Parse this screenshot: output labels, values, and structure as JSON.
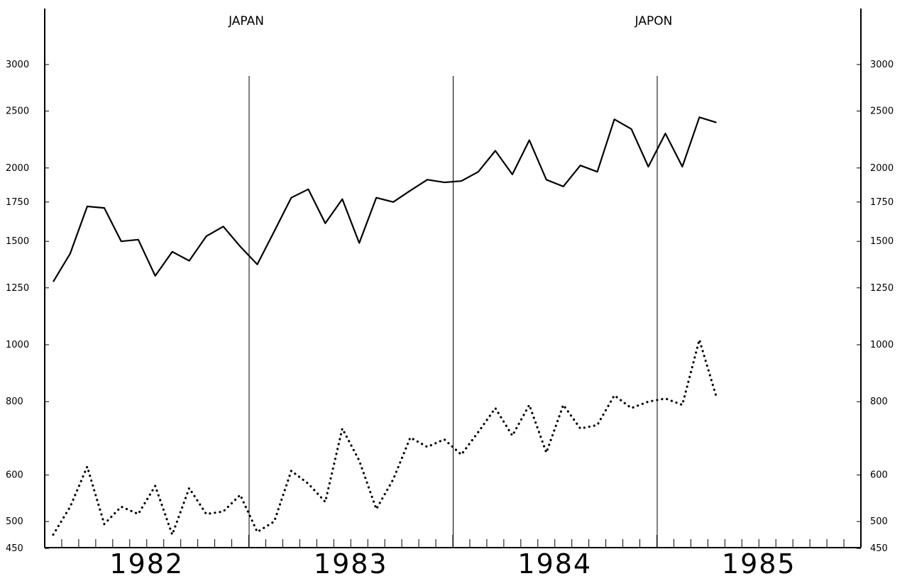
{
  "chart_data": {
    "type": "line",
    "titles": [
      "JAPAN",
      "JAPON"
    ],
    "x_unit": "month",
    "x_start": "1982-01",
    "x_end": "1985-12",
    "years": [
      "1982",
      "1983",
      "1984",
      "1985"
    ],
    "y_scale": "log",
    "ylim": [
      450,
      3500
    ],
    "y_ticks": [
      450,
      500,
      600,
      800,
      1000,
      1250,
      1500,
      1750,
      2000,
      2500,
      3000
    ],
    "year_dividers": [
      "1983-01",
      "1984-01",
      "1985-01"
    ],
    "series": [
      {
        "style": "solid",
        "start": "1982-01",
        "values": [
          1280,
          1430,
          1720,
          1710,
          1500,
          1510,
          1310,
          1440,
          1390,
          1530,
          1590,
          1470,
          1370,
          1560,
          1780,
          1840,
          1610,
          1770,
          1490,
          1780,
          1750,
          1830,
          1910,
          1890,
          1900,
          1970,
          2140,
          1950,
          2230,
          1910,
          1860,
          2020,
          1970,
          2420,
          2330,
          2010,
          2290,
          2010,
          2440,
          2390
        ]
      },
      {
        "style": "dotted",
        "start": "1982-01",
        "values": [
          475,
          530,
          620,
          495,
          530,
          515,
          575,
          475,
          570,
          515,
          520,
          555,
          480,
          500,
          610,
          580,
          540,
          720,
          635,
          525,
          590,
          695,
          670,
          690,
          650,
          710,
          780,
          700,
          790,
          655,
          790,
          720,
          730,
          820,
          780,
          800,
          810,
          790,
          1020,
          815
        ]
      }
    ]
  }
}
